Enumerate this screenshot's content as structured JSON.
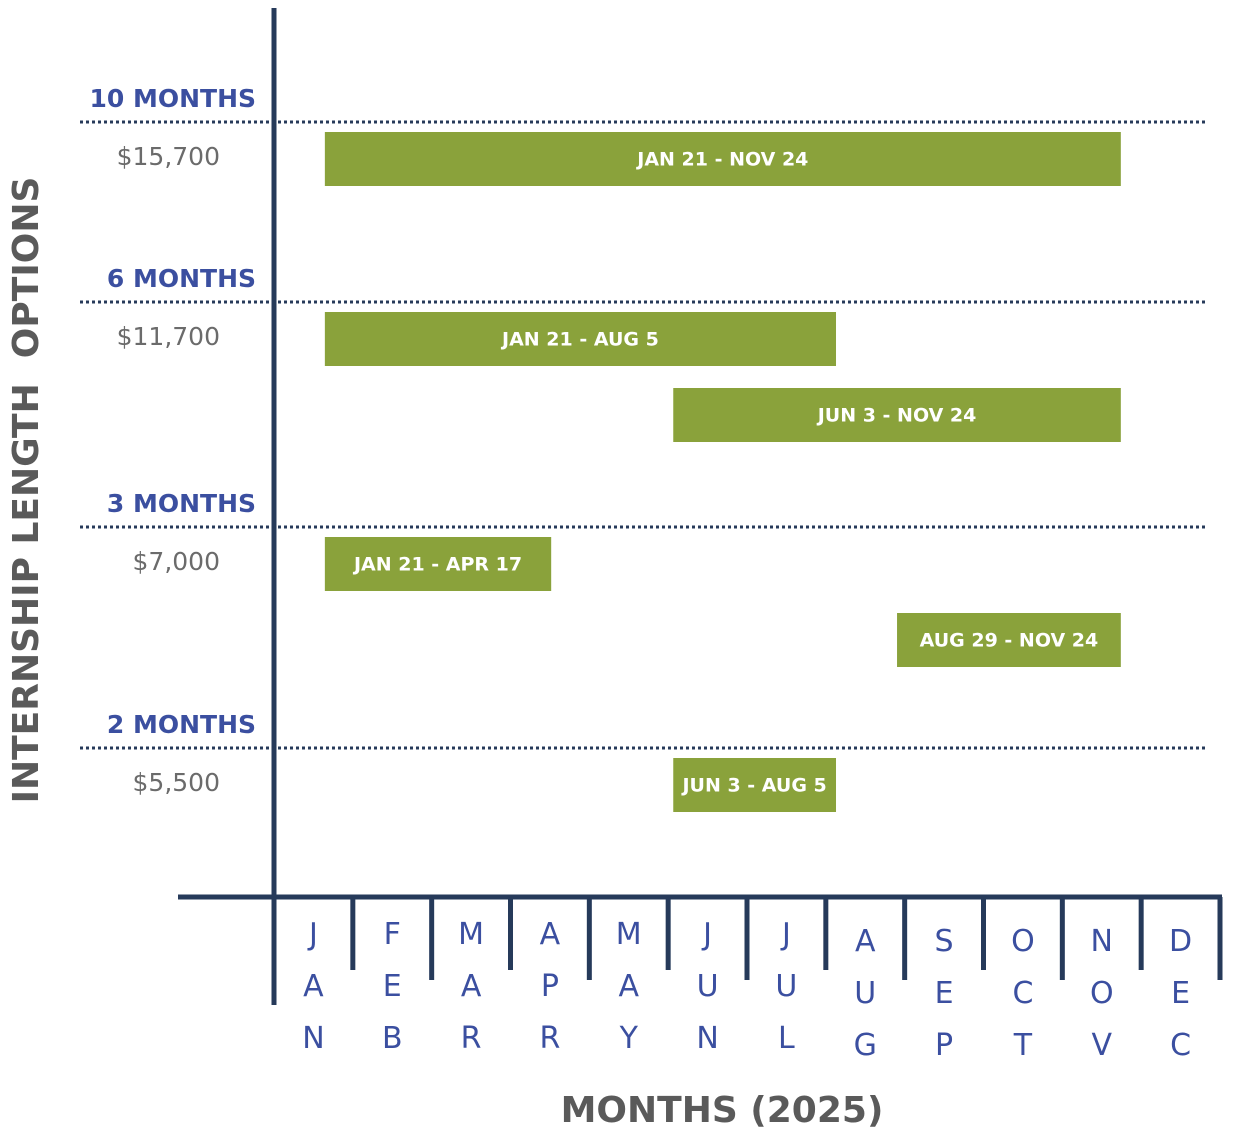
{
  "y_axis_label": "INTERNSHIP LENGTH  OPTIONS",
  "x_axis_label": "MONTHS (2025)",
  "months": [
    "JAN",
    "FEB",
    "MAR",
    "APR",
    "MAY",
    "JUN",
    "JUL",
    "AUG",
    "SEP",
    "OCT",
    "NOV",
    "DEC"
  ],
  "options": [
    {
      "length": "10 MONTHS",
      "price": "$15,700",
      "ranges": [
        "JAN 21 - NOV 24"
      ]
    },
    {
      "length": "6 MONTHS",
      "price": "$11,700",
      "ranges": [
        "JAN 21 - AUG 5",
        "JUN 3 - NOV 24"
      ]
    },
    {
      "length": "3 MONTHS",
      "price": "$7,000",
      "ranges": [
        "JAN 21 - APR 17",
        "AUG 29 - NOV 24"
      ]
    },
    {
      "length": "2 MONTHS",
      "price": "$5,500",
      "ranges": [
        "JUN 3 - AUG 5"
      ]
    }
  ]
}
